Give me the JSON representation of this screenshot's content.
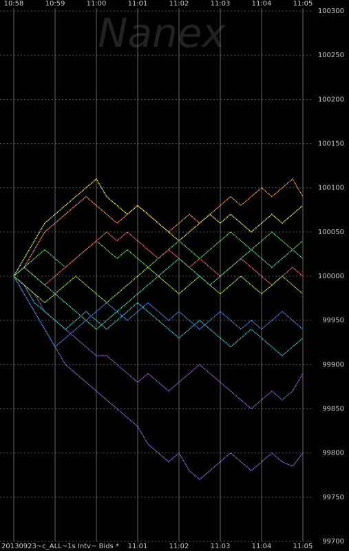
{
  "chart_data": {
    "type": "line",
    "watermark": "Nanex",
    "footer": "20130923~c_ALL~1s Intv~ Bids *",
    "x": [
      0,
      0.25,
      0.5,
      0.75,
      1,
      1.25,
      1.5,
      1.75,
      2,
      2.25,
      2.5,
      2.75,
      3,
      3.25,
      3.5,
      3.75,
      4,
      4.25,
      4.5,
      4.75,
      5,
      5.25,
      5.5,
      5.75,
      6,
      6.25,
      6.5,
      6.75,
      7
    ],
    "xlim": [
      0,
      7
    ],
    "xticks": [
      {
        "value": 0,
        "label": "10:58"
      },
      {
        "value": 1,
        "label": "10:59"
      },
      {
        "value": 2,
        "label": "11:00"
      },
      {
        "value": 3,
        "label": "11:01"
      },
      {
        "value": 4,
        "label": "11:02"
      },
      {
        "value": 5,
        "label": "11:03"
      },
      {
        "value": 6,
        "label": "11:04"
      },
      {
        "value": 7,
        "label": "11:05"
      }
    ],
    "ylim": [
      99700,
      100300
    ],
    "yticks": [
      99700,
      99750,
      99800,
      99850,
      99900,
      99950,
      100000,
      100050,
      100100,
      100150,
      100200,
      100250,
      100300
    ],
    "grid": true,
    "series": [
      {
        "color": "#9966cc",
        "values": [
          100000,
          99990,
          99980,
          99960,
          99950,
          99940,
          99930,
          99920,
          99910,
          99910,
          99900,
          99890,
          99880,
          99890,
          99880,
          99870,
          99880,
          99890,
          99900,
          99890,
          99880,
          99870,
          99860,
          99850,
          99860,
          99870,
          99860,
          99870,
          99890
        ]
      },
      {
        "color": "#8877dd",
        "values": [
          100000,
          99980,
          99960,
          99940,
          99920,
          99900,
          99890,
          99880,
          99870,
          99860,
          99850,
          99840,
          99830,
          99810,
          99800,
          99790,
          99800,
          99780,
          99770,
          99780,
          99790,
          99800,
          99790,
          99780,
          99790,
          99800,
          99790,
          99785,
          99800
        ]
      },
      {
        "color": "#ff9966",
        "values": [
          100000,
          100010,
          100030,
          100050,
          100060,
          100070,
          100080,
          100090,
          100080,
          100070,
          100060,
          100070,
          100080,
          100070,
          100060,
          100050,
          100060,
          100070,
          100060,
          100070,
          100080,
          100090,
          100080,
          100090,
          100100,
          100090,
          100100,
          100110,
          100090
        ]
      },
      {
        "color": "#eeee66",
        "values": [
          100000,
          100020,
          100040,
          100060,
          100070,
          100080,
          100090,
          100100,
          100110,
          100090,
          100080,
          100070,
          100080,
          100070,
          100060,
          100050,
          100040,
          100050,
          100060,
          100070,
          100060,
          100070,
          100060,
          100050,
          100060,
          100070,
          100060,
          100070,
          100080
        ]
      },
      {
        "color": "#66dd66",
        "values": [
          100000,
          100010,
          100020,
          100030,
          100020,
          100010,
          100020,
          100030,
          100040,
          100030,
          100020,
          100030,
          100020,
          100010,
          100020,
          100030,
          100040,
          100030,
          100020,
          100030,
          100040,
          100050,
          100040,
          100030,
          100040,
          100050,
          100040,
          100030,
          100040
        ]
      },
      {
        "color": "#44cccc",
        "values": [
          100000,
          99990,
          99970,
          99960,
          99950,
          99940,
          99950,
          99960,
          99950,
          99940,
          99950,
          99960,
          99970,
          99960,
          99950,
          99940,
          99930,
          99940,
          99950,
          99940,
          99930,
          99920,
          99930,
          99940,
          99930,
          99920,
          99910,
          99920,
          99930
        ]
      },
      {
        "color": "#5588ee",
        "values": [
          100000,
          99980,
          99960,
          99940,
          99920,
          99930,
          99940,
          99950,
          99960,
          99970,
          99960,
          99950,
          99960,
          99970,
          99960,
          99950,
          99960,
          99950,
          99940,
          99950,
          99960,
          99950,
          99940,
          99950,
          99940,
          99950,
          99960,
          99950,
          99940
        ]
      },
      {
        "color": "#ff6677",
        "values": [
          100000,
          100010,
          100000,
          99990,
          100000,
          100010,
          100020,
          100030,
          100040,
          100050,
          100040,
          100050,
          100040,
          100030,
          100020,
          100030,
          100020,
          100010,
          100020,
          100010,
          100000,
          100010,
          100020,
          100010,
          100000,
          99990,
          100000,
          100010,
          100000
        ]
      },
      {
        "color": "#aaee55",
        "values": [
          100000,
          99990,
          99980,
          99970,
          99980,
          99990,
          100000,
          99990,
          99980,
          99970,
          99980,
          99990,
          100000,
          100010,
          100000,
          99990,
          99980,
          99990,
          100000,
          99990,
          99980,
          99990,
          100000,
          99990,
          99980,
          99990,
          100000,
          99990,
          99980
        ]
      },
      {
        "color": "#55ddaa",
        "values": [
          100000,
          100010,
          100000,
          99990,
          99980,
          99970,
          99960,
          99950,
          99940,
          99950,
          99960,
          99970,
          99980,
          99990,
          100000,
          100010,
          100020,
          100010,
          100000,
          99990,
          100000,
          100010,
          100020,
          100030,
          100020,
          100010,
          100020,
          100030,
          100020
        ]
      }
    ]
  }
}
